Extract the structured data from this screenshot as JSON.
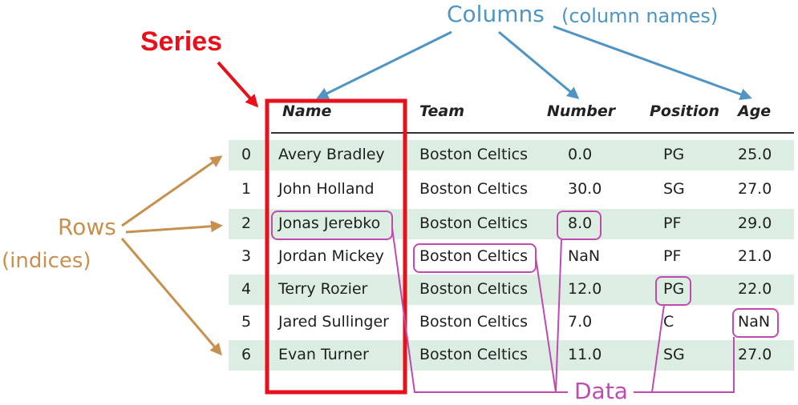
{
  "labels": {
    "columns": "Columns",
    "columns_note": "(column names)",
    "series": "Series",
    "rows": "Rows",
    "rows_note": "(indices)",
    "data": "Data"
  },
  "table": {
    "headers": [
      "Name",
      "Team",
      "Number",
      "Position",
      "Age"
    ],
    "rows": [
      {
        "index": "0",
        "name": "Avery Bradley",
        "team": "Boston Celtics",
        "number": "0.0",
        "position": "PG",
        "age": "25.0"
      },
      {
        "index": "1",
        "name": "John Holland",
        "team": "Boston Celtics",
        "number": "30.0",
        "position": "SG",
        "age": "27.0"
      },
      {
        "index": "2",
        "name": "Jonas Jerebko",
        "team": "Boston Celtics",
        "number": "8.0",
        "position": "PF",
        "age": "29.0"
      },
      {
        "index": "3",
        "name": "Jordan Mickey",
        "team": "Boston Celtics",
        "number": "NaN",
        "position": "PF",
        "age": "21.0"
      },
      {
        "index": "4",
        "name": "Terry Rozier",
        "team": "Boston Celtics",
        "number": "12.0",
        "position": "PG",
        "age": "22.0"
      },
      {
        "index": "5",
        "name": "Jared Sullinger",
        "team": "Boston Celtics",
        "number": "7.0",
        "position": "C",
        "age": "NaN"
      },
      {
        "index": "6",
        "name": "Evan Turner",
        "team": "Boston Celtics",
        "number": "11.0",
        "position": "SG",
        "age": "27.0"
      }
    ]
  },
  "colors": {
    "columns": "#4f95c3",
    "series": "#e8101a",
    "rows": "#c8904e",
    "data": "#c04ab0",
    "row_shade": "#dceee2"
  }
}
